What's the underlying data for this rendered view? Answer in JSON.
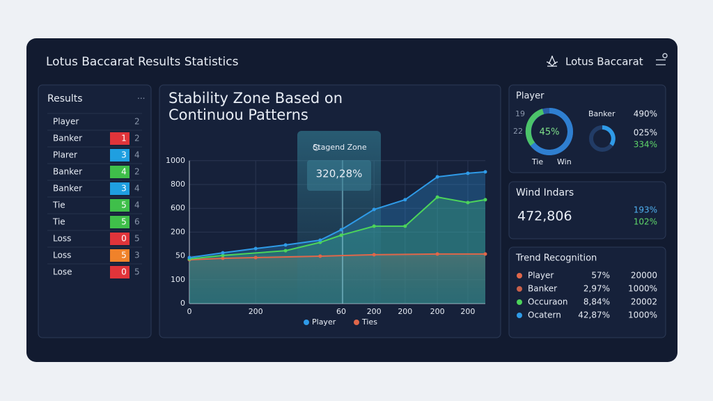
{
  "header": {
    "title": "Lotus Baccarat Results Statistics",
    "brand": "Lotus Baccarat"
  },
  "results": {
    "title": "Results",
    "menu": "···",
    "rows": [
      {
        "name": "Player",
        "badge": null,
        "count": "2"
      },
      {
        "name": "Banker",
        "badge": "1",
        "color": "#e0343a",
        "count": "2"
      },
      {
        "name": "Plarer",
        "badge": "3",
        "color": "#1f9fe0",
        "count": "4"
      },
      {
        "name": "Banker",
        "badge": "4",
        "color": "#3fbf4a",
        "count": "2"
      },
      {
        "name": "Banker",
        "badge": "3",
        "color": "#1f9fe0",
        "count": "4"
      },
      {
        "name": "Tie",
        "badge": "5",
        "color": "#3fbf4a",
        "count": "4"
      },
      {
        "name": "Tie",
        "badge": "5",
        "color": "#3fbf4a",
        "count": "6"
      },
      {
        "name": "Loss",
        "badge": "0",
        "color": "#e0343a",
        "count": "5"
      },
      {
        "name": "Loss",
        "badge": "5",
        "color": "#f0822a",
        "count": "3"
      },
      {
        "name": "Lose",
        "badge": "0",
        "color": "#e0343a",
        "count": "5"
      }
    ]
  },
  "chart": {
    "type": "area",
    "title_lines": [
      "Stability Zone Based on",
      "Continuou Patterns"
    ],
    "zone_label": "Stagend Zone",
    "zone_value": "320,28%",
    "y_axis_labels": [
      "0",
      "100",
      "50",
      "200",
      "600",
      "800",
      "1000"
    ],
    "x_axis_labels": [
      "0",
      "200",
      "60",
      "200",
      "200",
      "200",
      "200"
    ],
    "series": [
      {
        "name": "Ties",
        "color": "#e0674a",
        "legend": true,
        "x": [
          0,
          11.3,
          22.4,
          44.2,
          62.4,
          83.8,
          100
        ],
        "values": [
          1.84,
          1.9,
          1.93,
          1.99,
          2.05,
          2.08,
          2.08
        ]
      },
      {
        "name": null,
        "color": "#4cd45a",
        "legend": false,
        "x": [
          0,
          11.3,
          32.5,
          44.2,
          51.3,
          62.4,
          72.9,
          83.8,
          94.1,
          100
        ],
        "values": [
          1.87,
          2.02,
          2.22,
          2.57,
          2.87,
          3.25,
          3.25,
          4.47,
          4.24,
          4.36
        ]
      },
      {
        "name": "Player",
        "color": "#2f9be8",
        "legend": true,
        "x": [
          0,
          11.3,
          22.4,
          32.5,
          44.2,
          51.3,
          62.4,
          72.9,
          83.8,
          94.1,
          100
        ],
        "values": [
          1.93,
          2.13,
          2.31,
          2.46,
          2.66,
          3.1,
          3.95,
          4.36,
          5.32,
          5.47,
          5.53
        ]
      }
    ]
  },
  "player_panel": {
    "title": "Player",
    "donut_value": "45%",
    "left_top": "19",
    "left_bottom": "22",
    "tie": "Tie",
    "win": "Win",
    "banker": "Banker",
    "stat1": "490%",
    "stat2": "025%",
    "stat3": "334%"
  },
  "wind": {
    "title": "Wind Indars",
    "value": "472,806",
    "stat1": "193%",
    "stat2": "102%"
  },
  "trend": {
    "title": "Trend Recognition",
    "rows": [
      {
        "name": "Player",
        "color": "#e0674a",
        "pct": "57%",
        "value": "20000"
      },
      {
        "name": "Banker",
        "color": "#c8604a",
        "pct": "2,97%",
        "value": "1000%"
      },
      {
        "name": "Occuraon",
        "color": "#4cd45a",
        "pct": "8,84%",
        "value": "20002"
      },
      {
        "name": "Ocatern",
        "color": "#2f9be8",
        "pct": "42,87%",
        "value": "1000%"
      }
    ]
  }
}
